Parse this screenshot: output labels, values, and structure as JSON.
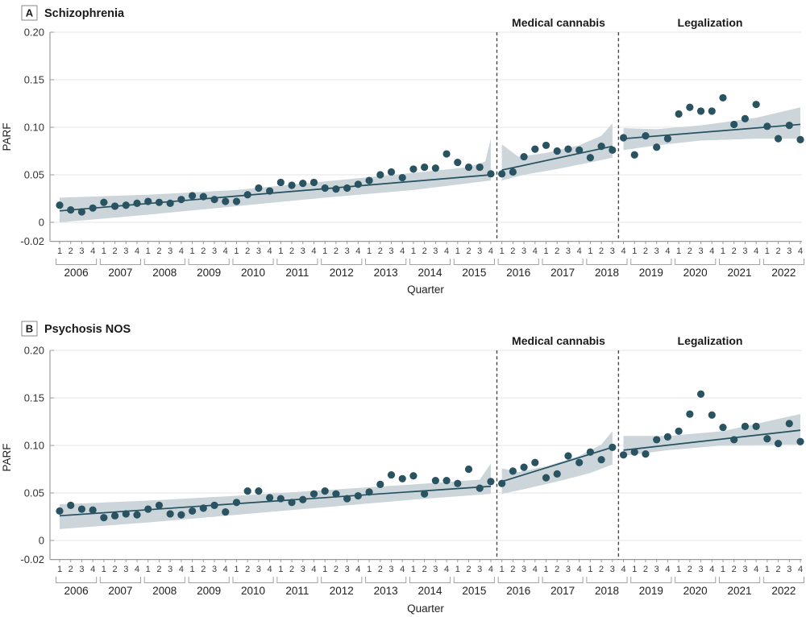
{
  "figure": {
    "x_axis_title": "Quarter",
    "y_axis_title": "PARF"
  },
  "chart_data": [
    {
      "type": "scatter",
      "panel_label": "A",
      "title": "Schizophrenia",
      "ylabel": "PARF",
      "xlabel": "Quarter",
      "ylim": [
        -0.02,
        0.2
      ],
      "grid": "horizontal",
      "yticks": [
        "0.20",
        "0.15",
        "0.10",
        "0.05",
        "0",
        "-0.02"
      ],
      "ytick_values": [
        0.2,
        0.15,
        0.1,
        0.05,
        0,
        -0.02
      ],
      "years": [
        "2006",
        "2007",
        "2008",
        "2009",
        "2010",
        "2011",
        "2012",
        "2013",
        "2014",
        "2015",
        "2016",
        "2017",
        "2018",
        "2019",
        "2020",
        "2021",
        "2022"
      ],
      "quarter_labels": [
        "1",
        "2",
        "3",
        "4"
      ],
      "region_labels": [
        "Medical cannabis",
        "Legalization"
      ],
      "interventions": [
        {
          "label": "Medical cannabis",
          "after_index": 39,
          "between": [
            "2015 Q4",
            "2016 Q1"
          ]
        },
        {
          "label": "Legalization",
          "after_index": 50,
          "between": [
            "2018 Q3",
            "2018 Q4"
          ]
        }
      ],
      "values": [
        0.018,
        0.013,
        0.011,
        0.015,
        0.021,
        0.017,
        0.018,
        0.02,
        0.022,
        0.021,
        0.02,
        0.024,
        0.028,
        0.027,
        0.024,
        0.022,
        0.022,
        0.029,
        0.036,
        0.033,
        0.042,
        0.039,
        0.041,
        0.042,
        0.036,
        0.035,
        0.036,
        0.04,
        0.044,
        0.05,
        0.053,
        0.047,
        0.056,
        0.058,
        0.057,
        0.072,
        0.063,
        0.058,
        0.058,
        0.051,
        0.051,
        0.053,
        0.069,
        0.077,
        0.081,
        0.075,
        0.077,
        0.076,
        0.068,
        0.08,
        0.076,
        0.089,
        0.071,
        0.091,
        0.079,
        0.088,
        0.114,
        0.121,
        0.117,
        0.117,
        0.131,
        0.103,
        0.109,
        0.124,
        0.101,
        0.088,
        0.102,
        0.087
      ],
      "segments": [
        {
          "range": [
            0,
            39
          ],
          "trend_start": 0.012,
          "trend_end": 0.05,
          "upper": [
            [
              0,
              0.026
            ],
            [
              8,
              0.029
            ],
            [
              16,
              0.034
            ],
            [
              24,
              0.043
            ],
            [
              32,
              0.052
            ],
            [
              37,
              0.058
            ],
            [
              38.5,
              0.064
            ],
            [
              39,
              0.088
            ]
          ],
          "lower": [
            [
              0,
              0.0
            ],
            [
              8,
              0.008
            ],
            [
              16,
              0.017
            ],
            [
              24,
              0.026
            ],
            [
              32,
              0.034
            ],
            [
              39,
              0.044
            ]
          ]
        },
        {
          "range": [
            40,
            50
          ],
          "trend_start": 0.055,
          "trend_end": 0.08,
          "upper": [
            [
              40,
              0.082
            ],
            [
              41.5,
              0.069
            ],
            [
              44,
              0.073
            ],
            [
              47,
              0.081
            ],
            [
              49,
              0.091
            ],
            [
              50,
              0.104
            ]
          ],
          "lower": [
            [
              40,
              0.044
            ],
            [
              42,
              0.05
            ],
            [
              45,
              0.056
            ],
            [
              48,
              0.063
            ],
            [
              50,
              0.068
            ]
          ]
        },
        {
          "range": [
            51,
            67
          ],
          "trend_start": 0.088,
          "trend_end": 0.103,
          "upper": [
            [
              51,
              0.099
            ],
            [
              54,
              0.098
            ],
            [
              58,
              0.102
            ],
            [
              63,
              0.11
            ],
            [
              67,
              0.121
            ]
          ],
          "lower": [
            [
              51,
              0.076
            ],
            [
              54,
              0.081
            ],
            [
              58,
              0.086
            ],
            [
              63,
              0.088
            ],
            [
              67,
              0.088
            ]
          ]
        }
      ]
    },
    {
      "type": "scatter",
      "panel_label": "B",
      "title": "Psychosis NOS",
      "ylabel": "PARF",
      "xlabel": "Quarter",
      "ylim": [
        -0.02,
        0.2
      ],
      "grid": "horizontal",
      "yticks": [
        "0.20",
        "0.15",
        "0.10",
        "0.05",
        "0",
        "-0.02"
      ],
      "ytick_values": [
        0.2,
        0.15,
        0.1,
        0.05,
        0,
        -0.02
      ],
      "years": [
        "2006",
        "2007",
        "2008",
        "2009",
        "2010",
        "2011",
        "2012",
        "2013",
        "2014",
        "2015",
        "2016",
        "2017",
        "2018",
        "2019",
        "2020",
        "2021",
        "2022"
      ],
      "quarter_labels": [
        "1",
        "2",
        "3",
        "4"
      ],
      "region_labels": [
        "Medical cannabis",
        "Legalization"
      ],
      "interventions": [
        {
          "label": "Medical cannabis",
          "after_index": 39,
          "between": [
            "2015 Q4",
            "2016 Q1"
          ]
        },
        {
          "label": "Legalization",
          "after_index": 50,
          "between": [
            "2018 Q3",
            "2018 Q4"
          ]
        }
      ],
      "values": [
        0.031,
        0.037,
        0.033,
        0.032,
        0.024,
        0.026,
        0.028,
        0.027,
        0.033,
        0.037,
        0.028,
        0.027,
        0.031,
        0.034,
        0.037,
        0.03,
        0.04,
        0.052,
        0.052,
        0.045,
        0.044,
        0.04,
        0.043,
        0.049,
        0.052,
        0.049,
        0.044,
        0.047,
        0.051,
        0.059,
        0.069,
        0.065,
        0.068,
        0.049,
        0.063,
        0.063,
        0.06,
        0.075,
        0.055,
        0.062,
        0.06,
        0.073,
        0.077,
        0.082,
        0.066,
        0.07,
        0.089,
        0.082,
        0.093,
        0.085,
        0.098,
        0.09,
        0.093,
        0.091,
        0.106,
        0.109,
        0.115,
        0.133,
        0.154,
        0.132,
        0.119,
        0.106,
        0.12,
        0.12,
        0.107,
        0.102,
        0.123,
        0.104
      ],
      "segments": [
        {
          "range": [
            0,
            39
          ],
          "trend_start": 0.026,
          "trend_end": 0.057,
          "upper": [
            [
              0,
              0.038
            ],
            [
              8,
              0.042
            ],
            [
              16,
              0.047
            ],
            [
              24,
              0.053
            ],
            [
              32,
              0.059
            ],
            [
              38,
              0.064
            ],
            [
              39,
              0.081
            ]
          ],
          "lower": [
            [
              0,
              0.012
            ],
            [
              8,
              0.019
            ],
            [
              16,
              0.027
            ],
            [
              24,
              0.035
            ],
            [
              32,
              0.043
            ],
            [
              39,
              0.049
            ]
          ]
        },
        {
          "range": [
            40,
            50
          ],
          "trend_start": 0.062,
          "trend_end": 0.098,
          "upper": [
            [
              40,
              0.076
            ],
            [
              41.5,
              0.072
            ],
            [
              44,
              0.078
            ],
            [
              47,
              0.089
            ],
            [
              49,
              0.101
            ],
            [
              50,
              0.115
            ]
          ],
          "lower": [
            [
              40,
              0.049
            ],
            [
              42,
              0.054
            ],
            [
              45,
              0.062
            ],
            [
              48,
              0.071
            ],
            [
              50,
              0.08
            ]
          ]
        },
        {
          "range": [
            51,
            67
          ],
          "trend_start": 0.095,
          "trend_end": 0.116,
          "upper": [
            [
              51,
              0.11
            ],
            [
              55,
              0.11
            ],
            [
              60,
              0.115
            ],
            [
              67,
              0.133
            ]
          ],
          "lower": [
            [
              51,
              0.089
            ],
            [
              55,
              0.095
            ],
            [
              60,
              0.1
            ],
            [
              67,
              0.101
            ]
          ]
        }
      ]
    }
  ],
  "colors": {
    "point": "#2a5362",
    "trend_line": "#24505f",
    "ci_band": "#ccd5da",
    "gridline": "#e6e6e6",
    "axis": "#9b9b9b",
    "dashed_line": "#474747"
  }
}
